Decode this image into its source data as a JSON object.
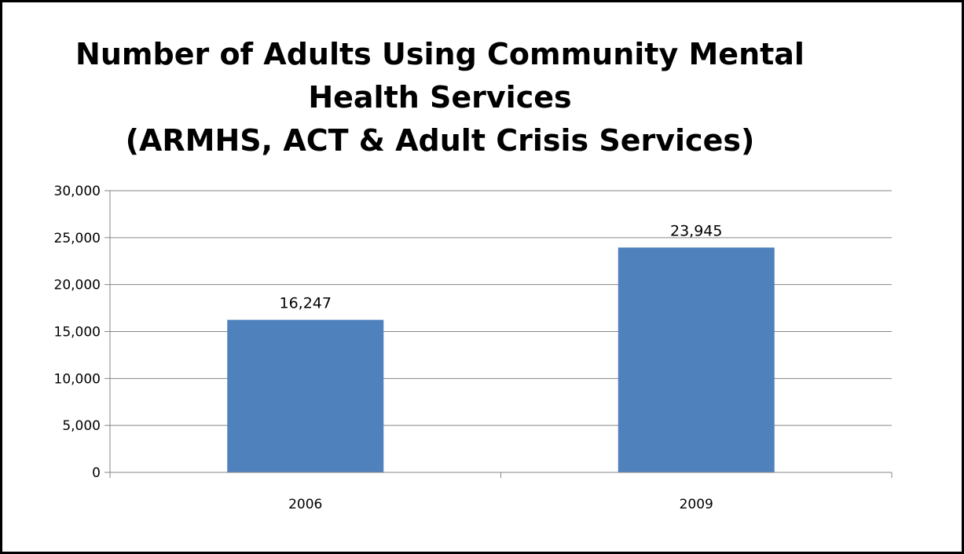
{
  "chart_data": {
    "type": "bar",
    "title_lines": [
      "Number of Adults Using Community Mental",
      "Health Services",
      "(ARMHS, ACT & Adult Crisis Services)"
    ],
    "categories": [
      "2006",
      "2009"
    ],
    "values": [
      16247,
      23945
    ],
    "data_labels": [
      "16,247",
      "23,945"
    ],
    "ylim": [
      0,
      30000
    ],
    "yticks": [
      0,
      5000,
      10000,
      15000,
      20000,
      25000,
      30000
    ],
    "ytick_labels": [
      "0",
      "5,000",
      "10,000",
      "15,000",
      "20,000",
      "25,000",
      "30,000"
    ],
    "xlabel": "",
    "ylabel": "",
    "grid": true,
    "legend": "none",
    "bar_color": "#4f81bd",
    "grid_color": "#868686"
  }
}
